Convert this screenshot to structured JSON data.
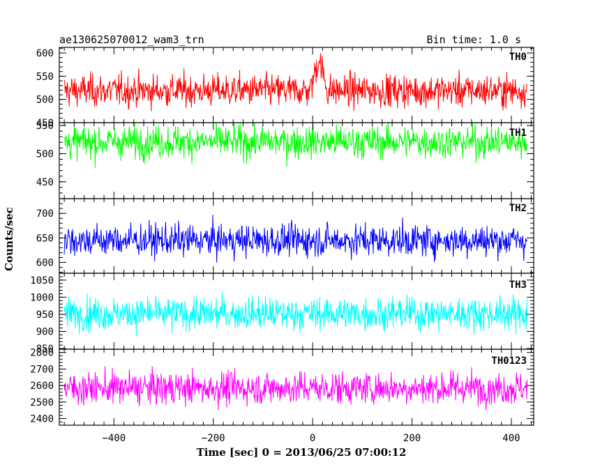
{
  "chart_data": {
    "type": "line",
    "title": "ae130625070012_wam3_trn",
    "subtitle": "Bin time: 1.0 s",
    "xlabel": "Time [sec] 0 = 2013/06/25 07:00:12",
    "ylabel": "Counts/sec",
    "xlim": [
      -510,
      445
    ],
    "x_range": [
      -500,
      432
    ],
    "bin_seconds": 1.0,
    "x_ticks": [
      -400,
      -200,
      0,
      200,
      400
    ],
    "x_tick_labels": [
      "−400",
      "−200",
      "0",
      "200",
      "400"
    ],
    "grid": false,
    "series": [
      {
        "name": "TH0",
        "color": "#ff0000",
        "ylim": [
          450,
          612
        ],
        "y_ticks": [
          450,
          500,
          550,
          600
        ],
        "y_tick_labels": [
          "450",
          "500",
          "550",
          "600"
        ],
        "mean": 519,
        "range": [
          450,
          612
        ],
        "spike": {
          "start": -5,
          "end": 30,
          "peak": 590
        }
      },
      {
        "name": "TH1",
        "color": "#00ff00",
        "ylim": [
          420,
          555
        ],
        "y_ticks": [
          450,
          500,
          550
        ],
        "y_tick_labels": [
          "450",
          "500",
          "550"
        ],
        "mean": 521,
        "range": [
          420,
          555
        ]
      },
      {
        "name": "TH2",
        "color": "#0000ff",
        "ylim": [
          578,
          730
        ],
        "y_ticks": [
          600,
          650,
          700
        ],
        "y_tick_labels": [
          "600",
          "650",
          "700"
        ],
        "mean": 645,
        "range": [
          578,
          730
        ]
      },
      {
        "name": "TH3",
        "color": "#00ffff",
        "ylim": [
          848,
          1070
        ],
        "y_ticks": [
          850,
          900,
          950,
          1000,
          1050
        ],
        "y_tick_labels": [
          "850",
          "900",
          "950",
          "1000",
          "1050"
        ],
        "mean": 952,
        "range": [
          848,
          1070
        ]
      },
      {
        "name": "TH0123",
        "color": "#ff00ff",
        "ylim": [
          2360,
          2820
        ],
        "y_ticks": [
          2400,
          2500,
          2600,
          2700,
          2800
        ],
        "y_tick_labels": [
          "2400",
          "2500",
          "2600",
          "2700",
          "2800"
        ],
        "mean": 2585,
        "range": [
          2360,
          2820
        ]
      }
    ]
  }
}
